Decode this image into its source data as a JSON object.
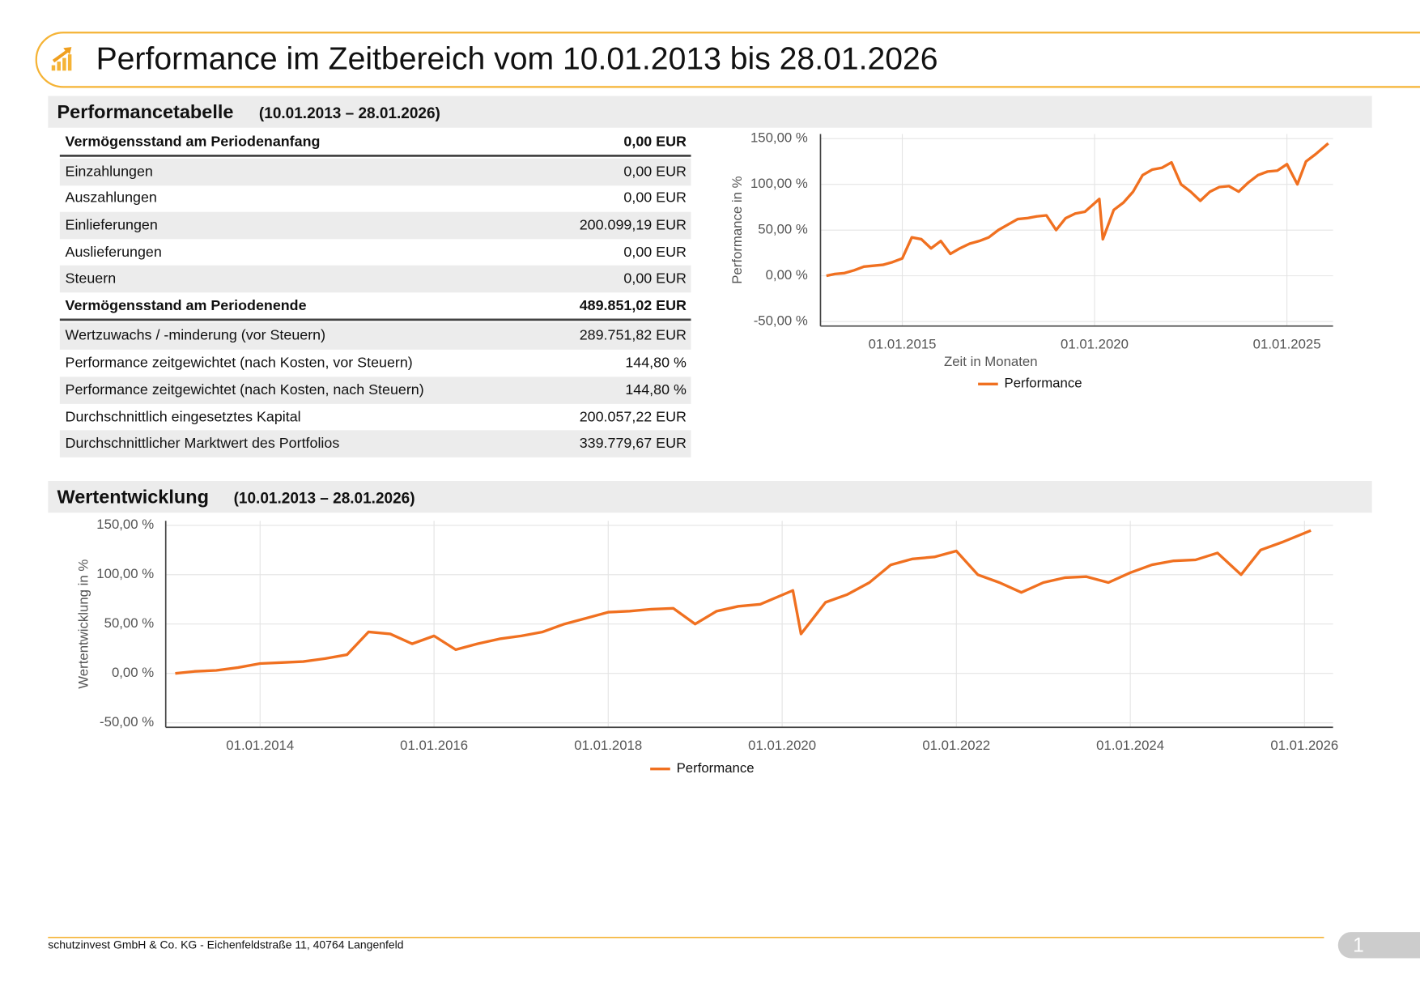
{
  "header": {
    "title": "Performance im Zeitbereich vom 10.01.2013 bis 28.01.2026"
  },
  "sections": [
    {
      "title": "Performancetabelle",
      "period": "(10.01.2013 – 28.01.2026)"
    },
    {
      "title": "Wertentwicklung",
      "period": "(10.01.2013 – 28.01.2026)"
    }
  ],
  "table": {
    "rows": [
      [
        "Vermögensstand am Periodenanfang",
        "0,00 EUR"
      ],
      [
        "Einzahlungen",
        "0,00 EUR"
      ],
      [
        "Auszahlungen",
        "0,00 EUR"
      ],
      [
        "Einlieferungen",
        "200.099,19 EUR"
      ],
      [
        "Auslieferungen",
        "0,00 EUR"
      ],
      [
        "Steuern",
        "0,00 EUR"
      ],
      [
        "Vermögensstand am Periodenende",
        "489.851,02 EUR"
      ],
      [
        "Wertzuwachs / -minderung (vor Steuern)",
        "289.751,82 EUR"
      ],
      [
        "Performance zeitgewichtet (nach Kosten, vor Steuern)",
        "144,80 %"
      ],
      [
        "Performance zeitgewichtet (nach Kosten, nach Steuern)",
        "144,80 %"
      ],
      [
        "Durchschnittlich eingesetztes Kapital",
        "200.057,22 EUR"
      ],
      [
        "Durchschnittlicher Marktwert des Portfolios",
        "339.779,67 EUR"
      ]
    ]
  },
  "chart_data": [
    {
      "type": "line",
      "ylabel": "Performance in %",
      "xlabel": "Zeit in Monaten",
      "x": [
        "10.01.2013",
        "01.04.2013",
        "01.07.2013",
        "01.10.2013",
        "01.01.2014",
        "01.04.2014",
        "01.07.2014",
        "01.10.2014",
        "01.01.2015",
        "01.04.2015",
        "01.07.2015",
        "01.10.2015",
        "01.01.2016",
        "01.04.2016",
        "01.07.2016",
        "01.10.2016",
        "01.01.2017",
        "01.04.2017",
        "01.07.2017",
        "01.10.2017",
        "01.01.2018",
        "01.04.2018",
        "01.07.2018",
        "01.10.2018",
        "01.01.2019",
        "01.04.2019",
        "01.07.2019",
        "01.10.2019",
        "15.02.2020",
        "20.03.2020",
        "01.07.2020",
        "01.10.2020",
        "01.01.2021",
        "01.04.2021",
        "01.07.2021",
        "01.10.2021",
        "01.01.2022",
        "01.04.2022",
        "01.07.2022",
        "01.10.2022",
        "01.01.2023",
        "01.04.2023",
        "01.07.2023",
        "01.10.2023",
        "01.01.2024",
        "01.04.2024",
        "01.07.2024",
        "01.10.2024",
        "01.01.2025",
        "10.04.2025",
        "01.07.2025",
        "01.10.2025",
        "28.01.2026"
      ],
      "series": [
        {
          "name": "Performance",
          "color": "#f07020",
          "values": [
            0,
            2,
            3,
            6,
            10,
            11,
            12,
            15,
            19,
            42,
            40,
            30,
            38,
            24,
            30,
            35,
            38,
            42,
            50,
            56,
            62,
            63,
            65,
            66,
            50,
            63,
            68,
            70,
            84,
            40,
            72,
            80,
            92,
            110,
            116,
            118,
            124,
            100,
            92,
            82,
            92,
            97,
            98,
            92,
            102,
            110,
            114,
            115,
            122,
            100,
            125,
            133,
            144.8
          ]
        }
      ],
      "xlim": [
        "15.11.2012",
        "15.03.2026"
      ],
      "ylim": [
        -50,
        150
      ],
      "xticks": [
        "01.01.2015",
        "01.01.2020",
        "01.01.2025"
      ],
      "yticks": [
        {
          "value": -50,
          "label": "-50,00 %"
        },
        {
          "value": 0,
          "label": "0,00 %"
        },
        {
          "value": 50,
          "label": "50,00 %"
        },
        {
          "value": 100,
          "label": "100,00 %"
        },
        {
          "value": 150,
          "label": "150,00 %"
        }
      ],
      "grid": true,
      "legend": "bottom"
    },
    {
      "type": "line",
      "ylabel": "Wertentwicklung in %",
      "x": [
        "10.01.2013",
        "01.04.2013",
        "01.07.2013",
        "01.10.2013",
        "01.01.2014",
        "01.04.2014",
        "01.07.2014",
        "01.10.2014",
        "01.01.2015",
        "01.04.2015",
        "01.07.2015",
        "01.10.2015",
        "01.01.2016",
        "01.04.2016",
        "01.07.2016",
        "01.10.2016",
        "01.01.2017",
        "01.04.2017",
        "01.07.2017",
        "01.10.2017",
        "01.01.2018",
        "01.04.2018",
        "01.07.2018",
        "01.10.2018",
        "01.01.2019",
        "01.04.2019",
        "01.07.2019",
        "01.10.2019",
        "15.02.2020",
        "20.03.2020",
        "01.07.2020",
        "01.10.2020",
        "01.01.2021",
        "01.04.2021",
        "01.07.2021",
        "01.10.2021",
        "01.01.2022",
        "01.04.2022",
        "01.07.2022",
        "01.10.2022",
        "01.01.2023",
        "01.04.2023",
        "01.07.2023",
        "01.10.2023",
        "01.01.2024",
        "01.04.2024",
        "01.07.2024",
        "01.10.2024",
        "01.01.2025",
        "10.04.2025",
        "01.07.2025",
        "01.10.2025",
        "28.01.2026"
      ],
      "series": [
        {
          "name": "Performance",
          "color": "#f07020",
          "values": [
            0,
            2,
            3,
            6,
            10,
            11,
            12,
            15,
            19,
            42,
            40,
            30,
            38,
            24,
            30,
            35,
            38,
            42,
            50,
            56,
            62,
            63,
            65,
            66,
            50,
            63,
            68,
            70,
            84,
            40,
            72,
            80,
            92,
            110,
            116,
            118,
            124,
            100,
            92,
            82,
            92,
            97,
            98,
            92,
            102,
            110,
            114,
            115,
            122,
            100,
            125,
            133,
            144.8
          ]
        }
      ],
      "xlim": [
        "01.12.2012",
        "01.05.2026"
      ],
      "ylim": [
        -50,
        150
      ],
      "xticks": [
        "01.01.2014",
        "01.01.2016",
        "01.01.2018",
        "01.01.2020",
        "01.01.2022",
        "01.01.2024",
        "01.01.2026"
      ],
      "yticks": [
        {
          "value": -50,
          "label": "-50,00 %"
        },
        {
          "value": 0,
          "label": "0,00 %"
        },
        {
          "value": 50,
          "label": "50,00 %"
        },
        {
          "value": 100,
          "label": "100,00 %"
        },
        {
          "value": 150,
          "label": "150,00 %"
        }
      ],
      "grid": true,
      "legend": "bottom"
    }
  ],
  "footer": {
    "address": "schutzinvest GmbH & Co. KG - Eichenfeldstraße 11, 40764 Langenfeld",
    "page": 1
  }
}
